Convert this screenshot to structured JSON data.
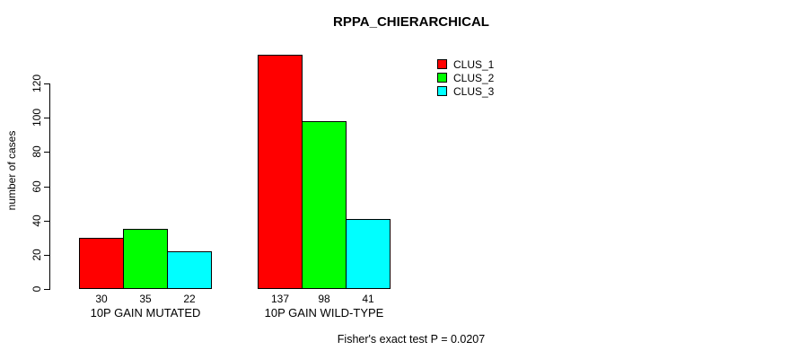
{
  "chart_data": {
    "type": "bar",
    "title": "RPPA_CHIERARCHICAL",
    "ylabel": "number of cases",
    "xlabel": "",
    "categories": [
      "10P GAIN MUTATED",
      "10P GAIN WILD-TYPE"
    ],
    "series": [
      {
        "name": "CLUS_1",
        "color": "#FF0000",
        "values": [
          30,
          137
        ]
      },
      {
        "name": "CLUS_2",
        "color": "#00FF00",
        "values": [
          35,
          98
        ]
      },
      {
        "name": "CLUS_3",
        "color": "#00FFFF",
        "values": [
          22,
          41
        ]
      }
    ],
    "y_ticks": [
      0,
      20,
      40,
      60,
      80,
      100,
      120
    ],
    "ylim": [
      0,
      120
    ],
    "grid": false,
    "legend_position": "top-right",
    "bar_value_labels": true,
    "footer": "Fisher's exact test P = 0.0207"
  },
  "colors": {
    "axis": "#000000",
    "background": "#FFFFFF",
    "text": "#000000"
  }
}
